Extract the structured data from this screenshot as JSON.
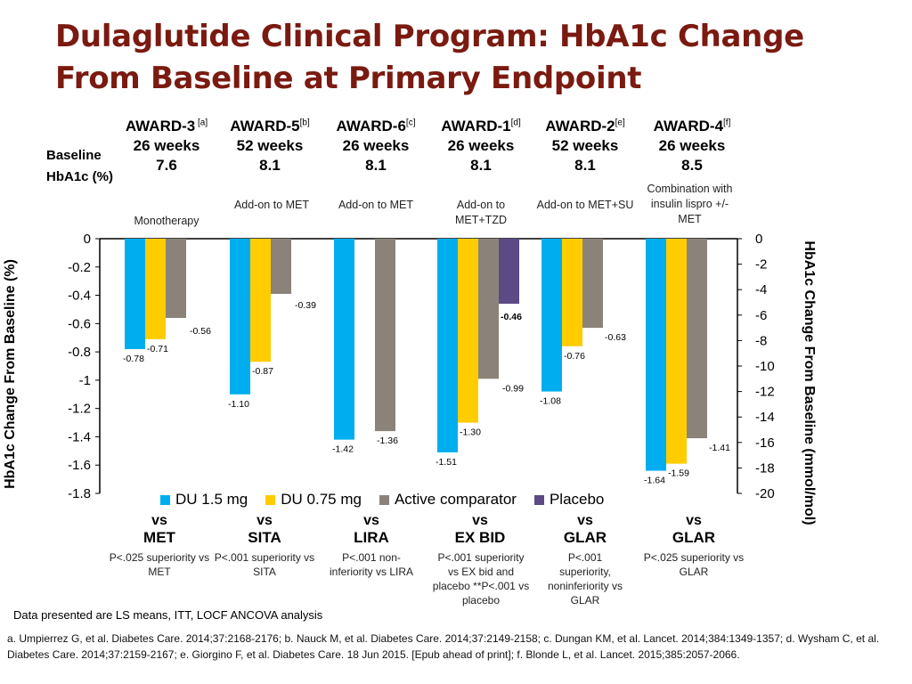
{
  "title": "Dulaglutide Clinical Program: HbA1c Change From Baseline at Primary Endpoint",
  "baseline_label_line1": "Baseline",
  "baseline_label_line2": "HbA1c (%)",
  "studies": [
    {
      "name": "AWARD-3",
      "ref": " [a]",
      "weeks": "26 weeks",
      "baseline": "7.6",
      "desc": "Monotherapy",
      "vs": "vs",
      "comparator": "MET",
      "note": "P<.025 superiority vs MET"
    },
    {
      "name": "AWARD-5",
      "ref": "[b]",
      "weeks": "52 weeks",
      "baseline": "8.1",
      "desc": "Add-on to MET",
      "vs": "vs",
      "comparator": "SITA",
      "note": "P<.001 superiority vs SITA"
    },
    {
      "name": "AWARD-6",
      "ref": "[c]",
      "weeks": "26 weeks",
      "baseline": "8.1",
      "desc": "Add-on to MET",
      "vs": "vs",
      "comparator": "LIRA",
      "note": "P<.001 non-inferiority vs LIRA"
    },
    {
      "name": "AWARD-1",
      "ref": "[d]",
      "weeks": "26 weeks",
      "baseline": "8.1",
      "desc": "Add-on to MET+TZD",
      "vs": "vs",
      "comparator": "EX BID",
      "note": "P<.001 superiority vs EX bid and placebo **P<.001 vs placebo"
    },
    {
      "name": "AWARD-2",
      "ref": "[e]",
      "weeks": "52 weeks",
      "baseline": "8.1",
      "desc": "Add-on to MET+SU",
      "vs": "vs",
      "comparator": "GLAR",
      "note": "P<.001 superiority, noninferiority vs GLAR"
    },
    {
      "name": "AWARD-4",
      "ref": "[f]",
      "weeks": "26 weeks",
      "baseline": "8.5",
      "desc": "Combination with insulin lispro +/- MET",
      "vs": "vs",
      "comparator": "GLAR",
      "note": "P<.025 superiority vs GLAR"
    }
  ],
  "chart_data": {
    "type": "bar",
    "categories": [
      "AWARD-3",
      "AWARD-5",
      "AWARD-6",
      "AWARD-1",
      "AWARD-2",
      "AWARD-4"
    ],
    "series": [
      {
        "name": "DU 1.5 mg",
        "color": "#00aeef",
        "values": [
          -0.78,
          -1.1,
          -1.42,
          -1.51,
          -1.08,
          -1.64
        ],
        "labels": [
          "-0.78",
          "-1.10",
          "-1.42",
          "-1.51",
          "-1.08",
          "-1.64"
        ]
      },
      {
        "name": "DU 0.75 mg",
        "color": "#ffcc00",
        "values": [
          -0.71,
          -0.87,
          null,
          -1.3,
          -0.76,
          -1.59
        ],
        "labels": [
          "-0.71",
          "-0.87",
          "",
          "-1.30",
          "-0.76",
          "-1.59"
        ]
      },
      {
        "name": "Active comparator",
        "color": "#8b8379",
        "values": [
          -0.56,
          -0.39,
          -1.36,
          -0.99,
          -0.63,
          -1.41
        ],
        "labels": [
          "-0.56",
          "-0.39",
          "-1.36",
          "-0.99",
          "-0.63",
          "-1.41"
        ]
      },
      {
        "name": "Placebo",
        "color": "#5c4a87",
        "values": [
          null,
          null,
          null,
          -0.46,
          null,
          null
        ],
        "labels": [
          "",
          "",
          "",
          "-0.46",
          "",
          ""
        ]
      }
    ],
    "ylabel": "HbA1c Change From Baseline (%)",
    "y2label": "HbA1c Change From Baseline (mmol/mol)",
    "ylim": [
      -1.8,
      0
    ],
    "y2lim": [
      -20,
      0
    ],
    "yticks": [
      "0",
      "-0.2",
      "-0.4",
      "-0.6",
      "-0.8",
      "-1",
      "-1.2",
      "-1.4",
      "-1.6",
      "-1.8"
    ],
    "y2ticks": [
      "0",
      "-2",
      "-4",
      "-6",
      "-8",
      "-10",
      "-12",
      "-14",
      "-16",
      "-18",
      "-20"
    ],
    "legend_position": "bottom",
    "grid": false
  },
  "data_note": "Data presented are LS means, ITT, LOCF ANCOVA analysis",
  "references": "a. Umpierrez G, et al. Diabetes Care. 2014;37:2168-2176; b. Nauck M, et al. Diabetes Care. 2014;37:2149-2158; c. Dungan KM, et al. Lancet. 2014;384:1349-1357; d. Wysham C, et al. Diabetes Care. 2014;37:2159-2167; e. Giorgino F, et al. Diabetes Care. 18 Jun 2015. [Epub ahead of print]; f. Blonde L, et al. Lancet. 2015;385:2057-2066."
}
